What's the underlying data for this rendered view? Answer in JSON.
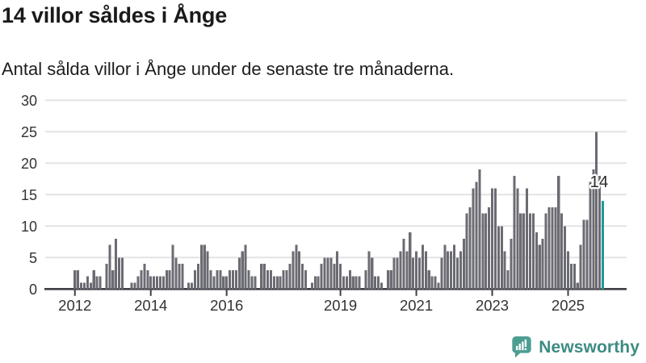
{
  "header": {
    "title": "14 villor såldes i Ånge",
    "subtitle": "Antal sålda villor i Ånge under de senaste tre månaderna."
  },
  "chart_data": {
    "type": "bar",
    "title": "14 villor såldes i Ånge",
    "subtitle": "Antal sålda villor i Ånge under de senaste tre månaderna.",
    "xlabel": "",
    "ylabel": "",
    "ylim": [
      0,
      30
    ],
    "grid": true,
    "y_ticks": [
      0,
      5,
      10,
      15,
      20,
      25,
      30
    ],
    "x_ticks": [
      {
        "label": "2012",
        "index": 8
      },
      {
        "label": "2014",
        "index": 32
      },
      {
        "label": "2016",
        "index": 56
      },
      {
        "label": "2019",
        "index": 92
      },
      {
        "label": "2021",
        "index": 116
      },
      {
        "label": "2023",
        "index": 140
      },
      {
        "label": "2025",
        "index": 164
      }
    ],
    "values": [
      0,
      0,
      0,
      0,
      0,
      0,
      0,
      0,
      3,
      3,
      1,
      1,
      2,
      1,
      3,
      2,
      2,
      0,
      4,
      7,
      3,
      8,
      5,
      5,
      0,
      0,
      1,
      1,
      2,
      3,
      4,
      3,
      2,
      2,
      2,
      2,
      2,
      3,
      3,
      7,
      5,
      4,
      4,
      0,
      1,
      1,
      3,
      4,
      7,
      7,
      6,
      3,
      2,
      3,
      3,
      2,
      2,
      3,
      3,
      3,
      5,
      6,
      7,
      3,
      2,
      2,
      0,
      4,
      4,
      3,
      3,
      2,
      2,
      2,
      3,
      3,
      4,
      6,
      7,
      6,
      4,
      3,
      0,
      1,
      2,
      2,
      4,
      5,
      5,
      5,
      4,
      6,
      4,
      2,
      2,
      3,
      2,
      2,
      2,
      0,
      3,
      6,
      5,
      2,
      2,
      1,
      0,
      3,
      3,
      5,
      5,
      6,
      8,
      6,
      9,
      5,
      6,
      5,
      7,
      6,
      3,
      2,
      2,
      1,
      5,
      7,
      6,
      6,
      7,
      5,
      6,
      8,
      12,
      13,
      16,
      17,
      19,
      12,
      12,
      13,
      16,
      16,
      10,
      10,
      6,
      3,
      8,
      18,
      16,
      12,
      12,
      16,
      12,
      12,
      9,
      7,
      8,
      12,
      13,
      13,
      13,
      18,
      12,
      10,
      6,
      4,
      4,
      1,
      7,
      11,
      11,
      17,
      19,
      25,
      18,
      14
    ],
    "highlight_index": 175,
    "annotation": {
      "text": "14"
    },
    "colors": {
      "bar": "#6b6b73",
      "highlight": "#1f999c",
      "gridline": "#e4e4e4",
      "axis": "#3f3f44",
      "tick_label": "#333333",
      "annotation_text": "#2d2d2d"
    }
  },
  "branding": {
    "logo_text": "Newsworthy",
    "logo_text_color": "#3e8b82",
    "logo_icon": "bar-chart-speech-bubble-icon",
    "logo_icon_color": "#4c9e92"
  }
}
